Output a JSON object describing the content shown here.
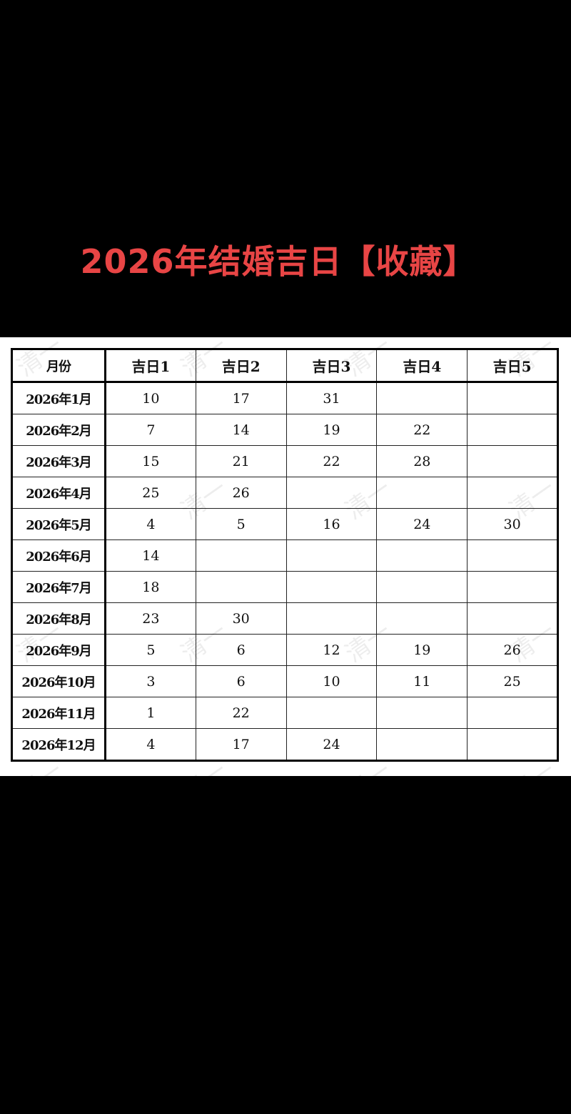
{
  "title": "2026年结婚吉日【收藏】",
  "colors": {
    "title": "#e84545",
    "background": "#000000"
  },
  "watermark": "清一",
  "table": {
    "headers": [
      "月份",
      "吉日1",
      "吉日2",
      "吉日3",
      "吉日4",
      "吉日5"
    ],
    "rows": [
      [
        "2026年1月",
        "10",
        "17",
        "31",
        "",
        ""
      ],
      [
        "2026年2月",
        "7",
        "14",
        "19",
        "22",
        ""
      ],
      [
        "2026年3月",
        "15",
        "21",
        "22",
        "28",
        ""
      ],
      [
        "2026年4月",
        "25",
        "26",
        "",
        "",
        ""
      ],
      [
        "2026年5月",
        "4",
        "5",
        "16",
        "24",
        "30"
      ],
      [
        "2026年6月",
        "14",
        "",
        "",
        "",
        ""
      ],
      [
        "2026年7月",
        "18",
        "",
        "",
        "",
        ""
      ],
      [
        "2026年8月",
        "23",
        "30",
        "",
        "",
        ""
      ],
      [
        "2026年9月",
        "5",
        "6",
        "12",
        "19",
        "26"
      ],
      [
        "2026年10月",
        "3",
        "6",
        "10",
        "11",
        "25"
      ],
      [
        "2026年11月",
        "1",
        "22",
        "",
        "",
        ""
      ],
      [
        "2026年12月",
        "4",
        "17",
        "24",
        "",
        ""
      ]
    ]
  }
}
